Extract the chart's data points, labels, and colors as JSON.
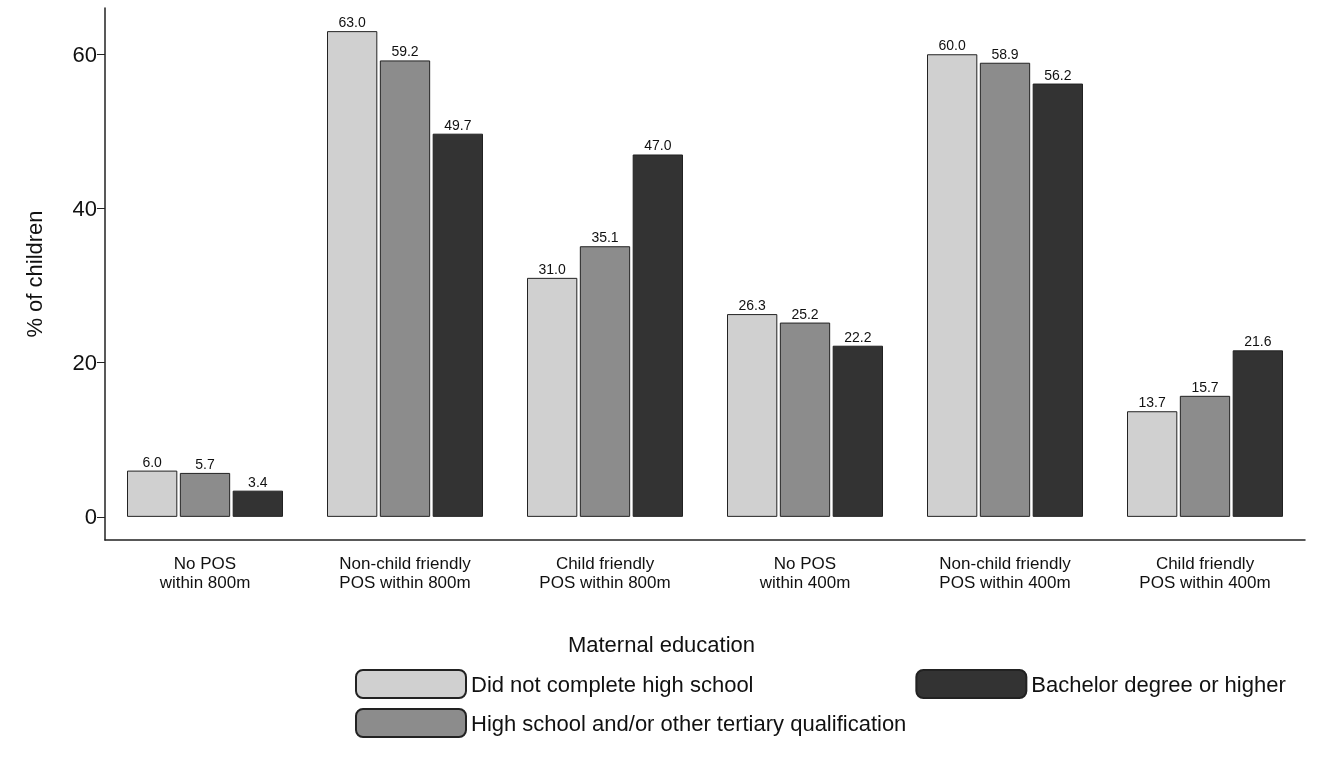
{
  "chart_data": {
    "type": "bar",
    "ylabel": "% of children",
    "legend_title": "Maternal education",
    "categories": [
      "No POS\nwithin 800m",
      "Non-child friendly\nPOS within 800m",
      "Child friendly\nPOS within 800m",
      "No POS\nwithin 400m",
      "Non-child friendly\nPOS within 400m",
      "Child friendly\nPOS within 400m"
    ],
    "series": [
      {
        "name": "Did not complete high school",
        "color": "#d0d0d0",
        "values": [
          6.0,
          63.0,
          31.0,
          26.3,
          60.0,
          13.7
        ],
        "value_labels": [
          "6.0",
          "63.0",
          "31.0",
          "26.3",
          "60.0",
          "13.7"
        ]
      },
      {
        "name": "High school and/or other tertiary qualification",
        "color": "#8c8c8c",
        "values": [
          5.7,
          59.2,
          35.1,
          25.2,
          58.9,
          15.7
        ],
        "value_labels": [
          "5.7",
          "59.2",
          "35.1",
          "25.2",
          "58.9",
          "15.7"
        ]
      },
      {
        "name": "Bachelor degree or higher",
        "color": "#333333",
        "values": [
          3.4,
          49.7,
          47.0,
          22.2,
          56.2,
          21.6
        ],
        "value_labels": [
          "3.4",
          "49.7",
          "47.0",
          "22.2",
          "56.2",
          "21.6"
        ]
      }
    ],
    "ylim": [
      -3,
      66
    ],
    "yticks": [
      0,
      20,
      40,
      60
    ],
    "grid": false,
    "legend": "bottom"
  }
}
